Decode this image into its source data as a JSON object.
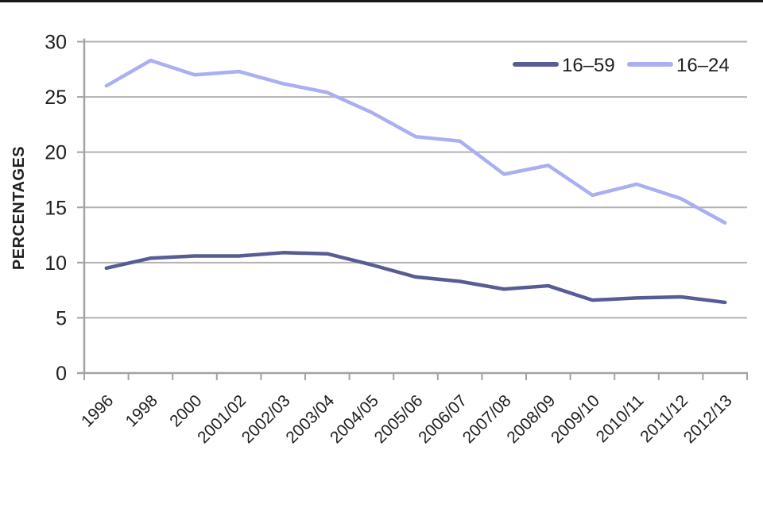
{
  "decorations": {
    "top_border_color": "#191919",
    "background": "#ffffff"
  },
  "chart_data": {
    "type": "line",
    "title": "",
    "xlabel": "",
    "ylabel": "PERCENTAGES",
    "ylim": [
      0,
      30
    ],
    "yticks": [
      0,
      5,
      10,
      15,
      20,
      25,
      30
    ],
    "grid": true,
    "legend_position": "top-right-inside",
    "categories": [
      "1996",
      "1998",
      "2000",
      "2001/02",
      "2002/03",
      "2003/04",
      "2004/05",
      "2005/06",
      "2006/07",
      "2007/08",
      "2008/09",
      "2009/10",
      "2010/11",
      "2011/12",
      "2012/13"
    ],
    "series": [
      {
        "name": "16–59",
        "color": "#585c94",
        "values": [
          9.5,
          10.4,
          10.6,
          10.6,
          10.9,
          10.8,
          9.8,
          8.7,
          8.3,
          7.6,
          7.9,
          6.6,
          6.8,
          6.9,
          6.4
        ]
      },
      {
        "name": "16–24",
        "color": "#a9aff0",
        "values": [
          26.0,
          28.3,
          27.0,
          27.3,
          26.2,
          25.4,
          23.6,
          21.4,
          21.0,
          18.0,
          18.8,
          16.1,
          17.1,
          15.8,
          13.6
        ]
      }
    ],
    "colors": {
      "gridline": "#b2b2b2",
      "axis": "#a3a3a3",
      "text": "#1f1f1f"
    }
  }
}
